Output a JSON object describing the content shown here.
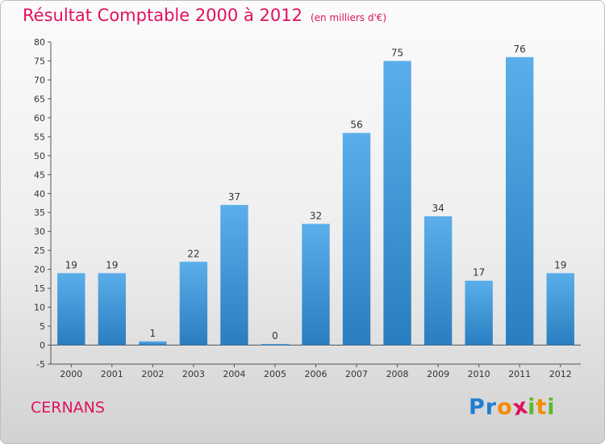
{
  "page": {
    "commune": "CERNANS",
    "logo": {
      "letters": [
        "P",
        "r",
        "o",
        "x",
        "i",
        "t",
        "i"
      ]
    }
  },
  "colors": {
    "title": "#e0115f",
    "bar_light": "#5aaeea",
    "bar_dark": "#2a7ec0",
    "logo": [
      "#1f7fd0",
      "#1f7fd0",
      "#f28c00",
      "#e0115f",
      "#5cb82e",
      "#f28c00",
      "#5cb82e"
    ]
  },
  "chart_data": {
    "type": "bar",
    "title": "Résultat Comptable 2000 à 2012",
    "subtitle": "(en milliers d'€)",
    "xlabel": "",
    "ylabel": "",
    "categories": [
      "2000",
      "2001",
      "2002",
      "2003",
      "2004",
      "2005",
      "2006",
      "2007",
      "2008",
      "2009",
      "2010",
      "2011",
      "2012"
    ],
    "values": [
      19,
      19,
      1,
      22,
      37,
      0,
      32,
      56,
      75,
      34,
      17,
      76,
      19
    ],
    "ylim": [
      -5,
      80
    ],
    "yticks": [
      -5,
      0,
      5,
      10,
      15,
      20,
      25,
      30,
      35,
      40,
      45,
      50,
      55,
      60,
      65,
      70,
      75,
      80
    ],
    "grid": false,
    "legend": "none"
  }
}
